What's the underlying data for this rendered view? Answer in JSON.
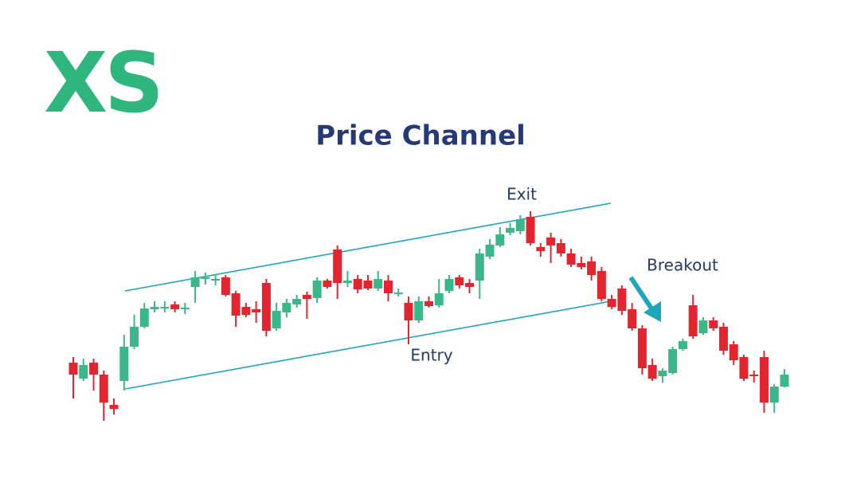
{
  "logo": "XS",
  "chart_data": {
    "type": "candlestick",
    "title": "Price Channel",
    "annotations": [
      "Exit",
      "Breakout",
      "Entry"
    ],
    "up_color": "#3bb78a",
    "down_color": "#e2262f",
    "channel_color": "#1ea7b8",
    "ylim": [
      0,
      320
    ],
    "open": [
      95,
      75,
      95,
      80,
      42,
      72,
      115,
      140,
      162,
      163,
      168,
      162,
      190,
      200,
      198,
      202,
      182,
      165,
      162,
      195,
      138,
      158,
      168,
      180,
      176,
      198,
      237,
      195,
      200,
      198,
      188,
      198,
      182,
      170,
      148,
      172,
      167,
      185,
      202,
      195,
      198,
      228,
      242,
      258,
      260,
      278,
      240,
      252,
      245,
      232,
      220,
      222,
      210,
      175,
      188,
      162,
      138,
      92,
      78,
      82,
      112,
      167,
      132,
      148,
      140,
      118,
      102,
      80,
      102,
      45,
      65
    ],
    "high": [
      102,
      100,
      100,
      85,
      50,
      130,
      155,
      170,
      172,
      172,
      172,
      170,
      210,
      208,
      206,
      205,
      185,
      170,
      172,
      200,
      170,
      175,
      180,
      184,
      202,
      200,
      242,
      210,
      205,
      205,
      210,
      205,
      188,
      178,
      178,
      178,
      200,
      205,
      205,
      200,
      238,
      250,
      265,
      270,
      280,
      285,
      245,
      258,
      250,
      238,
      228,
      228,
      215,
      180,
      192,
      170,
      142,
      100,
      88,
      115,
      125,
      180,
      152,
      152,
      145,
      122,
      105,
      85,
      110,
      68,
      87
    ],
    "low": [
      50,
      72,
      60,
      22,
      30,
      60,
      112,
      138,
      158,
      158,
      158,
      156,
      170,
      193,
      192,
      178,
      140,
      152,
      145,
      128,
      135,
      152,
      164,
      150,
      170,
      188,
      175,
      190,
      182,
      186,
      185,
      172,
      178,
      118,
      145,
      164,
      164,
      182,
      188,
      182,
      175,
      225,
      240,
      255,
      256,
      242,
      228,
      220,
      228,
      215,
      212,
      198,
      172,
      162,
      155,
      135,
      80,
      72,
      70,
      80,
      110,
      125,
      130,
      135,
      105,
      92,
      72,
      70,
      32,
      32,
      64
    ],
    "close": [
      80,
      92,
      80,
      45,
      37,
      115,
      140,
      163,
      165,
      165,
      162,
      164,
      202,
      202,
      200,
      180,
      154,
      155,
      158,
      135,
      160,
      170,
      175,
      175,
      198,
      190,
      195,
      198,
      187,
      188,
      200,
      182,
      183,
      148,
      172,
      166,
      182,
      200,
      192,
      190,
      232,
      243,
      256,
      264,
      275,
      245,
      235,
      242,
      232,
      218,
      215,
      205,
      175,
      165,
      160,
      138,
      88,
      75,
      85,
      112,
      122,
      128,
      148,
      138,
      110,
      98,
      75,
      78,
      45,
      65,
      80
    ]
  }
}
